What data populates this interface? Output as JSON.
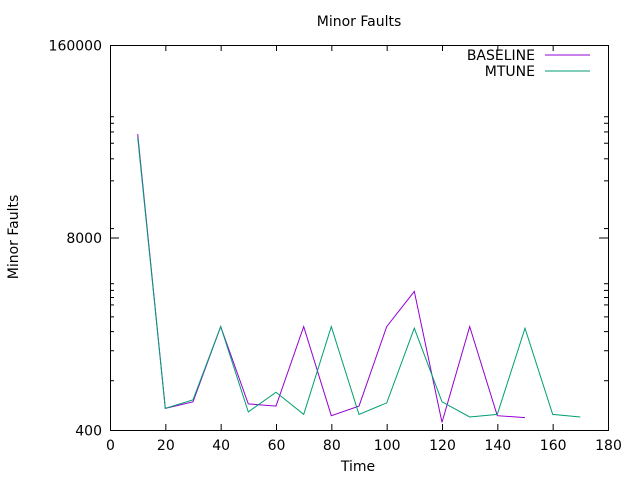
{
  "chart_data": {
    "type": "line",
    "title": "Minor Faults",
    "xlabel": "Time",
    "ylabel": "Minor Faults",
    "xlim": [
      0,
      180
    ],
    "ylim": [
      400,
      160000
    ],
    "y_scale": "log",
    "x_ticks": [
      "0",
      "20",
      "40",
      "60",
      "80",
      "100",
      "120",
      "140",
      "160",
      "180"
    ],
    "y_ticks": [
      {
        "value": 160000,
        "label": "160000"
      },
      {
        "value": 8000,
        "label": "8000"
      },
      {
        "value": 400,
        "label": "400"
      }
    ],
    "y_minor_ticks": [
      9264,
      19472,
      27440,
      34960,
      41680,
      47680,
      52800,
      868,
      1384,
      1864,
      2344,
      2824,
      3168,
      3540,
      3928
    ],
    "grid": false,
    "legend_position": "top-right",
    "series": [
      {
        "name": "BASELINE",
        "color": "#9400d3",
        "x": [
          10,
          20,
          30,
          40,
          50,
          60,
          70,
          80,
          90,
          100,
          110,
          120,
          130,
          140,
          150
        ],
        "y": [
          40000,
          560,
          620,
          2000,
          600,
          580,
          2000,
          500,
          580,
          2000,
          3460,
          450,
          2000,
          500,
          485
        ]
      },
      {
        "name": "MTUNE",
        "color": "#009e73",
        "x": [
          10,
          20,
          30,
          40,
          50,
          60,
          70,
          80,
          90,
          100,
          110,
          120,
          130,
          140,
          150,
          160,
          170
        ],
        "y": [
          38000,
          560,
          640,
          2000,
          530,
          720,
          510,
          2000,
          510,
          610,
          1950,
          620,
          490,
          510,
          1950,
          510,
          490
        ]
      }
    ]
  }
}
